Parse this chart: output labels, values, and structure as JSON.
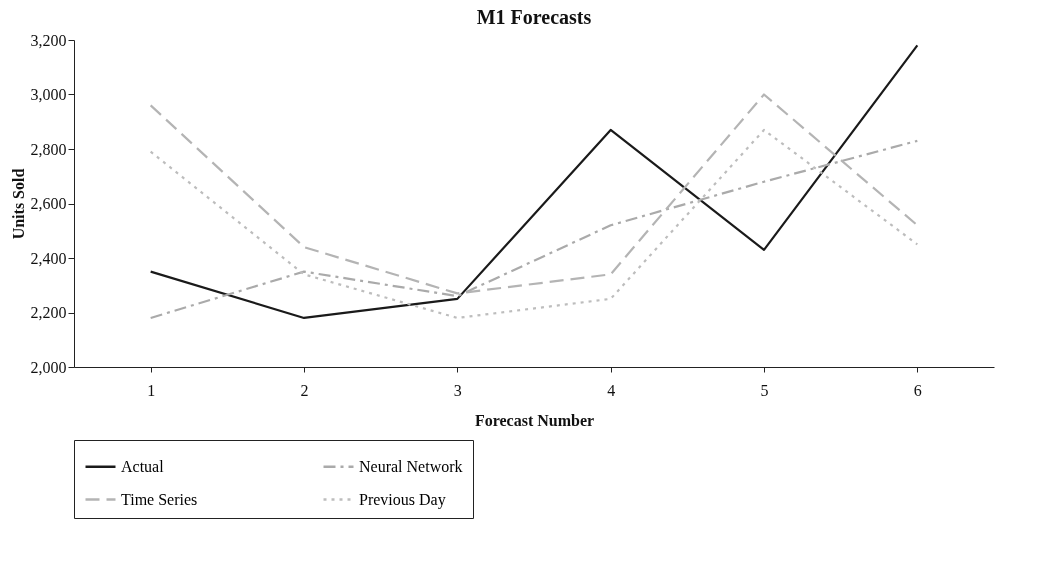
{
  "chart_data": {
    "type": "line",
    "title": "M1 Forecasts",
    "xlabel": "Forecast Number",
    "ylabel": "Units Sold",
    "categories": [
      "1",
      "2",
      "3",
      "4",
      "5",
      "6"
    ],
    "series": [
      {
        "name": "Actual",
        "color": "#1a1a1a",
        "line_style": "solid",
        "values": [
          2350,
          2180,
          2250,
          2870,
          2430,
          3180
        ]
      },
      {
        "name": "Neural Network",
        "color": "#aaaaaa",
        "line_style": "dashdot",
        "values": [
          2180,
          2350,
          2260,
          2520,
          2680,
          2830
        ]
      },
      {
        "name": "Time Series",
        "color": "#b4b4b4",
        "line_style": "dashed",
        "values": [
          2960,
          2440,
          2270,
          2340,
          3000,
          2520
        ]
      },
      {
        "name": "Previous Day",
        "color": "#bdbdbd",
        "line_style": "dotted",
        "values": [
          2790,
          2340,
          2180,
          2250,
          2870,
          2450
        ]
      }
    ],
    "ylim": [
      2000,
      3200
    ],
    "yticks": [
      {
        "value": 2000,
        "label": "2,000"
      },
      {
        "value": 2200,
        "label": "2,200"
      },
      {
        "value": 2400,
        "label": "2,400"
      },
      {
        "value": 2600,
        "label": "2,600"
      },
      {
        "value": 2800,
        "label": "2,800"
      },
      {
        "value": 3000,
        "label": "3,000"
      },
      {
        "value": 3200,
        "label": "3,200"
      }
    ],
    "grid": false,
    "legend": "bottom",
    "marker": "none"
  }
}
